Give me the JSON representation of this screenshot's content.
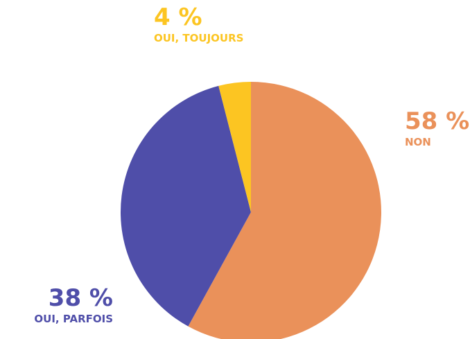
{
  "colors": {
    "non": "#ea915a",
    "oui_parfois": "#4f4ea9",
    "oui_toujours": "#fcc522",
    "background": "#ffffff"
  },
  "chart_data": {
    "type": "pie",
    "title": "",
    "slices": [
      {
        "label": "NON",
        "value": 58,
        "value_label": "58 %",
        "color": "#ea915a"
      },
      {
        "label": "OUI, PARFOIS",
        "value": 38,
        "value_label": "38 %",
        "color": "#4f4ea9"
      },
      {
        "label": "OUI, TOUJOURS",
        "value": 4,
        "value_label": "4 %",
        "color": "#fcc522"
      }
    ],
    "start_angle_deg": 0,
    "direction": "clockwise",
    "legend": "none"
  }
}
